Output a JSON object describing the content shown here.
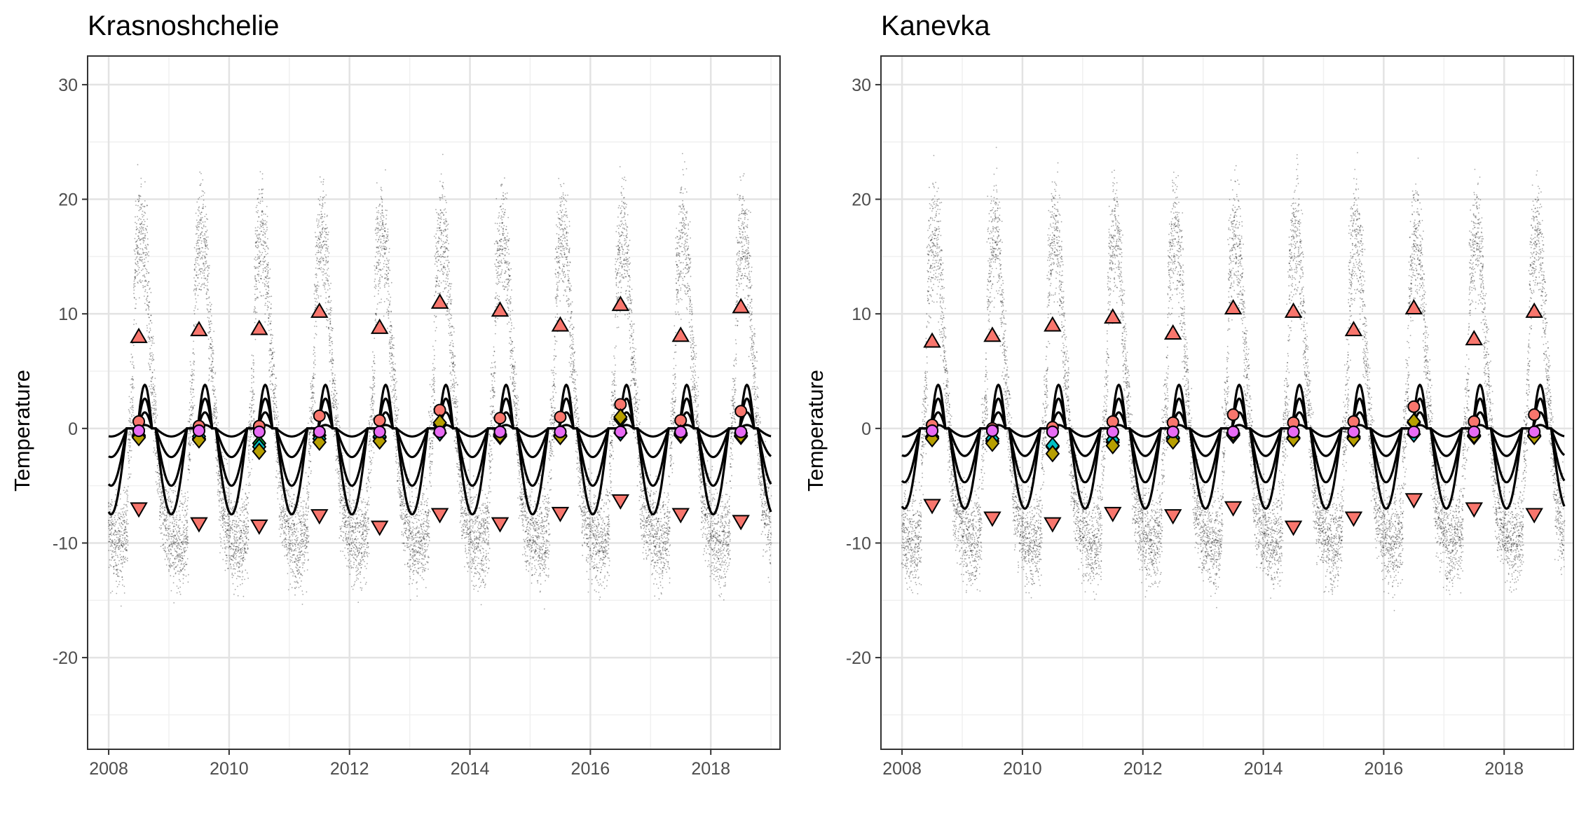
{
  "chart_data": [
    {
      "type": "scatter",
      "title": "Krasnoshchelie",
      "ylabel": "Temperature",
      "xlabel": "",
      "xlim": [
        2007.65,
        2019.15
      ],
      "ylim": [
        -28,
        32.5
      ],
      "xticks": [
        2008,
        2010,
        2012,
        2014,
        2016,
        2018
      ],
      "yticks": [
        -20,
        -10,
        0,
        10,
        20,
        30
      ],
      "grid": true,
      "legend": "none",
      "colors": {
        "up_triangle": "#f8766d",
        "down_triangle": "#f8766d",
        "circle_red": "#f8766d",
        "circle_magenta": "#e76bf3",
        "diamond_green": "#00ba38",
        "diamond_cyan": "#00bfc4",
        "diamond_olive": "#b79f00",
        "raw_points": "#000000",
        "lines": "#000000"
      },
      "series": [
        {
          "marker": "triangle-up",
          "x": [
            2008.5,
            2009.5,
            2010.5,
            2011.5,
            2012.5,
            2013.5,
            2014.5,
            2015.5,
            2016.5,
            2017.5,
            2018.5
          ],
          "values": [
            8.0,
            8.6,
            8.7,
            10.2,
            8.8,
            11.0,
            10.3,
            9.0,
            10.8,
            8.1,
            10.6
          ]
        },
        {
          "marker": "triangle-down",
          "x": [
            2008.5,
            2009.5,
            2010.5,
            2011.5,
            2012.5,
            2013.5,
            2014.5,
            2015.5,
            2016.5,
            2017.5,
            2018.5
          ],
          "values": [
            -7.0,
            -8.3,
            -8.5,
            -7.6,
            -8.6,
            -7.5,
            -8.3,
            -7.4,
            -6.3,
            -7.5,
            -8.1
          ]
        },
        {
          "marker": "circle-red",
          "x": [
            2008.5,
            2009.5,
            2010.5,
            2011.5,
            2012.5,
            2013.5,
            2014.5,
            2015.5,
            2016.5,
            2017.5,
            2018.5
          ],
          "values": [
            0.6,
            0.2,
            0.2,
            1.1,
            0.7,
            1.6,
            0.9,
            1.0,
            2.1,
            0.7,
            1.5
          ]
        },
        {
          "marker": "circle-magenta",
          "x": [
            2008.5,
            2009.5,
            2010.5,
            2011.5,
            2012.5,
            2013.5,
            2014.5,
            2015.5,
            2016.5,
            2017.5,
            2018.5
          ],
          "values": [
            -0.2,
            -0.2,
            -0.3,
            -0.3,
            -0.3,
            -0.3,
            -0.3,
            -0.3,
            -0.3,
            -0.3,
            -0.3
          ]
        },
        {
          "marker": "diamond-green",
          "x": [
            2008.5,
            2009.5,
            2010.5,
            2011.5,
            2012.5,
            2013.5,
            2014.5,
            2015.5,
            2016.5,
            2017.5,
            2018.5
          ],
          "values": [
            -0.6,
            -0.9,
            -1.3,
            -0.6,
            -0.8,
            0.3,
            -0.5,
            -0.7,
            0.8,
            -0.4,
            -0.4
          ]
        },
        {
          "marker": "diamond-cyan",
          "x": [
            2008.5,
            2009.5,
            2010.5,
            2011.5,
            2012.5,
            2013.5,
            2014.5,
            2015.5,
            2016.5,
            2017.5,
            2018.5
          ],
          "values": [
            -0.7,
            -0.7,
            -1.6,
            -0.9,
            -0.7,
            -0.4,
            -0.7,
            -0.6,
            -0.4,
            -0.6,
            -0.7
          ]
        },
        {
          "marker": "diamond-olive",
          "x": [
            2008.5,
            2009.5,
            2010.5,
            2011.5,
            2012.5,
            2013.5,
            2014.5,
            2015.5,
            2016.5,
            2017.5,
            2018.5
          ],
          "values": [
            -0.8,
            -1.0,
            -2.0,
            -1.2,
            -1.1,
            0.5,
            -0.6,
            -0.7,
            1.0,
            -0.5,
            -0.6
          ]
        }
      ],
      "raw_data": {
        "x_range": [
          2008.0,
          2019.0
        ],
        "summer_peak": 26,
        "winter_trough": -19,
        "winter_base": -4
      },
      "lines": [
        {
          "name_shown": false,
          "amplitude_summer": 3.8,
          "amplitude_winter": -7.5
        },
        {
          "name_shown": false,
          "amplitude_summer": 2.6,
          "amplitude_winter": -5.0
        },
        {
          "name_shown": false,
          "amplitude_summer": 1.4,
          "amplitude_winter": -2.5
        },
        {
          "name_shown": false,
          "amplitude_summer": 0.3,
          "amplitude_winter": -0.7
        }
      ]
    },
    {
      "type": "scatter",
      "title": "Kanevka",
      "ylabel": "Temperature",
      "xlabel": "",
      "xlim": [
        2007.65,
        2019.15
      ],
      "ylim": [
        -28,
        32.5
      ],
      "xticks": [
        2008,
        2010,
        2012,
        2014,
        2016,
        2018
      ],
      "yticks": [
        -20,
        -10,
        0,
        10,
        20,
        30
      ],
      "grid": true,
      "legend": "none",
      "series": [
        {
          "marker": "triangle-up",
          "x": [
            2008.5,
            2009.5,
            2010.5,
            2011.5,
            2012.5,
            2013.5,
            2014.5,
            2015.5,
            2016.5,
            2017.5,
            2018.5
          ],
          "values": [
            7.6,
            8.1,
            9.0,
            9.7,
            8.3,
            10.5,
            10.2,
            8.6,
            10.5,
            7.8,
            10.2
          ]
        },
        {
          "marker": "triangle-down",
          "x": [
            2008.5,
            2009.5,
            2010.5,
            2011.5,
            2012.5,
            2013.5,
            2014.5,
            2015.5,
            2016.5,
            2017.5,
            2018.5
          ],
          "values": [
            -6.7,
            -7.8,
            -8.3,
            -7.4,
            -7.6,
            -6.9,
            -8.6,
            -7.8,
            -6.2,
            -7.0,
            -7.5
          ]
        },
        {
          "marker": "circle-red",
          "x": [
            2008.5,
            2009.5,
            2010.5,
            2011.5,
            2012.5,
            2013.5,
            2014.5,
            2015.5,
            2016.5,
            2017.5,
            2018.5
          ],
          "values": [
            0.3,
            0.0,
            0.1,
            0.6,
            0.5,
            1.2,
            0.5,
            0.6,
            1.9,
            0.6,
            1.2
          ]
        },
        {
          "marker": "circle-magenta",
          "x": [
            2008.5,
            2009.5,
            2010.5,
            2011.5,
            2012.5,
            2013.5,
            2014.5,
            2015.5,
            2016.5,
            2017.5,
            2018.5
          ],
          "values": [
            -0.2,
            -0.2,
            -0.3,
            -0.3,
            -0.3,
            -0.3,
            -0.3,
            -0.3,
            -0.3,
            -0.3,
            -0.3
          ]
        },
        {
          "marker": "diamond-green",
          "x": [
            2008.5,
            2009.5,
            2010.5,
            2011.5,
            2012.5,
            2013.5,
            2014.5,
            2015.5,
            2016.5,
            2017.5,
            2018.5
          ],
          "values": [
            -0.7,
            -1.1,
            -1.6,
            -1.2,
            -0.9,
            -0.5,
            -0.8,
            -0.8,
            0.5,
            -0.6,
            -0.6
          ]
        },
        {
          "marker": "diamond-cyan",
          "x": [
            2008.5,
            2009.5,
            2010.5,
            2011.5,
            2012.5,
            2013.5,
            2014.5,
            2015.5,
            2016.5,
            2017.5,
            2018.5
          ],
          "values": [
            -0.8,
            -0.9,
            -1.5,
            -1.0,
            -0.8,
            -0.6,
            -0.8,
            -0.7,
            -0.5,
            -0.7,
            -0.7
          ]
        },
        {
          "marker": "diamond-olive",
          "x": [
            2008.5,
            2009.5,
            2010.5,
            2011.5,
            2012.5,
            2013.5,
            2014.5,
            2015.5,
            2016.5,
            2017.5,
            2018.5
          ],
          "values": [
            -0.9,
            -1.3,
            -2.2,
            -1.5,
            -1.1,
            -0.4,
            -0.9,
            -0.9,
            0.6,
            -0.6,
            -0.7
          ]
        }
      ],
      "raw_data": {
        "x_range": [
          2008.0,
          2019.0
        ],
        "summer_peak": 26,
        "winter_trough": -18,
        "winter_base": -4
      },
      "lines": [
        {
          "name_shown": false,
          "amplitude_summer": 3.8,
          "amplitude_winter": -7.0
        },
        {
          "name_shown": false,
          "amplitude_summer": 2.6,
          "amplitude_winter": -4.7
        },
        {
          "name_shown": false,
          "amplitude_summer": 1.4,
          "amplitude_winter": -2.4
        },
        {
          "name_shown": false,
          "amplitude_summer": 0.3,
          "amplitude_winter": -0.7
        }
      ]
    }
  ]
}
